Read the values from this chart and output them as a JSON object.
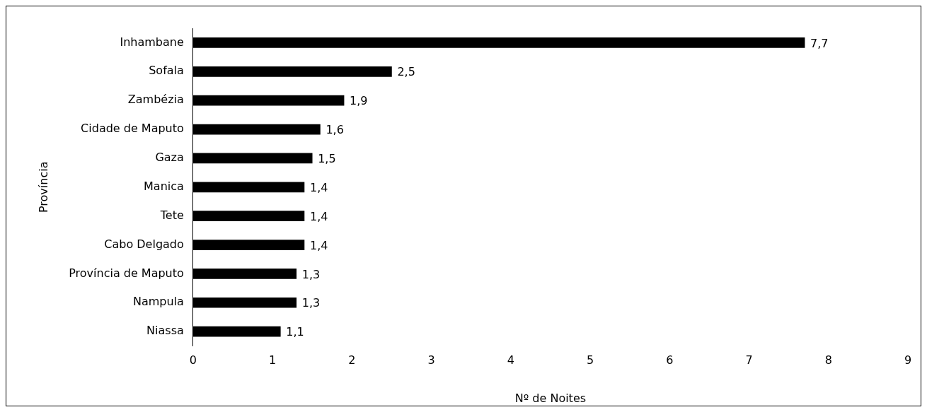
{
  "chart_data": {
    "type": "bar",
    "orientation": "horizontal",
    "xlabel": "Nº de Noites",
    "ylabel": "Província",
    "categories": [
      "Inhambane",
      "Sofala",
      "Zambézia",
      "Cidade de Maputo",
      "Gaza",
      "Manica",
      "Tete",
      "Cabo Delgado",
      "Província de Maputo",
      "Nampula",
      "Niassa"
    ],
    "values": [
      7.7,
      2.5,
      1.9,
      1.6,
      1.5,
      1.4,
      1.4,
      1.4,
      1.3,
      1.3,
      1.1
    ],
    "value_labels": [
      "7,7",
      "2,5",
      "1,9",
      "1,6",
      "1,5",
      "1,4",
      "1,4",
      "1,4",
      "1,3",
      "1,3",
      "1,1"
    ],
    "color": "#000000",
    "xlim": [
      0,
      9
    ],
    "xticks": [
      0,
      1,
      2,
      3,
      4,
      5,
      6,
      7,
      8,
      9
    ],
    "grid": false,
    "legend": false
  }
}
